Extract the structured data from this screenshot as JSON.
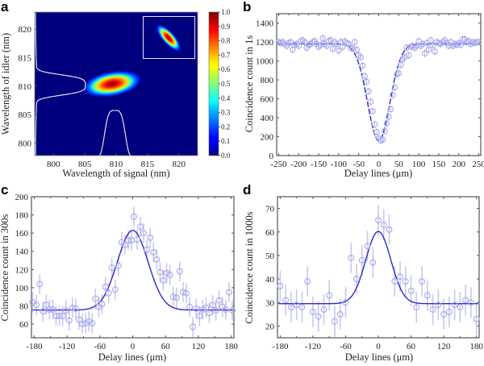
{
  "figure": {
    "panels": [
      "a",
      "b",
      "c",
      "d"
    ]
  },
  "chart_data": [
    {
      "id": "a",
      "type": "heatmap",
      "panel_label": "a",
      "title": "",
      "xlabel": "Wavelength of signal (nm)",
      "ylabel": "Wavelength of idler (nm)",
      "xlim": [
        797,
        823
      ],
      "ylim": [
        797.8,
        823
      ],
      "xticks": [
        800,
        805,
        810,
        815,
        820
      ],
      "yticks": [
        800,
        805,
        810,
        815,
        820
      ],
      "colormap": "jet",
      "colorbar": {
        "range": [
          0.0,
          1.0
        ],
        "ticks": [
          "0.0",
          "0.1",
          "0.2",
          "0.3",
          "0.4",
          "0.5",
          "0.6",
          "0.7",
          "0.8",
          "0.9",
          "1.0"
        ]
      },
      "main_peak": {
        "signal_nm": 809.8,
        "idler_nm": 810.2,
        "signal_fwhm_nm": 5.0,
        "idler_fwhm_nm": 1.9,
        "orientation": "slightly anti-correlated",
        "max": 1.0
      },
      "inset": {
        "description": "anti-correlated joint spectrum",
        "orientation": "anti-diagonal",
        "location": "top-right"
      },
      "marginals": [
        {
          "name": "idler-marginal",
          "axis": "y",
          "center_nm": 810.2,
          "width_nm": 3.6,
          "shape": "flat-top"
        },
        {
          "name": "signal-marginal",
          "axis": "x",
          "center_nm": 809.8,
          "width_nm": 3.3,
          "shape": "flat-top"
        }
      ],
      "background": "#00007f"
    },
    {
      "id": "b",
      "type": "scatter",
      "panel_label": "b",
      "xlabel": "Delay lines (μm)",
      "ylabel": "Coincidence count in 1s",
      "xlim": [
        -255,
        255
      ],
      "ylim": [
        0,
        1500
      ],
      "xticks": [
        -250,
        -200,
        -150,
        -100,
        -50,
        0,
        50,
        100,
        150,
        200,
        250
      ],
      "yticks": [
        0,
        200,
        400,
        600,
        800,
        1000,
        1200,
        1400
      ],
      "fit": {
        "type": "gaussian-dip",
        "baseline": 1180,
        "depth": 1020,
        "center": 0,
        "sigma": 28
      },
      "series": [
        {
          "name": "measured",
          "marker": "open-circle",
          "color": "#a8a8ec",
          "x": [
            -250,
            -245,
            -240,
            -235,
            -230,
            -225,
            -220,
            -215,
            -210,
            -205,
            -200,
            -195,
            -190,
            -185,
            -180,
            -175,
            -170,
            -165,
            -160,
            -155,
            -150,
            -145,
            -140,
            -135,
            -130,
            -125,
            -120,
            -115,
            -110,
            -105,
            -100,
            -95,
            -90,
            -85,
            -80,
            -75,
            -70,
            -65,
            -60,
            -55,
            -50,
            -45,
            -40,
            -35,
            -30,
            -25,
            -20,
            -15,
            -10,
            -5,
            0,
            5,
            10,
            15,
            20,
            25,
            30,
            35,
            40,
            45,
            50,
            55,
            60,
            65,
            70,
            75,
            80,
            85,
            90,
            95,
            100,
            105,
            110,
            115,
            120,
            125,
            130,
            135,
            140,
            145,
            150,
            155,
            160,
            165,
            170,
            175,
            180,
            185,
            190,
            195,
            200,
            205,
            210,
            215,
            220,
            225,
            230,
            235,
            240,
            245,
            250
          ],
          "y": [
            1200,
            1190,
            1200,
            1180,
            1160,
            1190,
            1200,
            1120,
            1170,
            1180,
            1160,
            1210,
            1220,
            1200,
            1140,
            1170,
            1180,
            1200,
            1210,
            1180,
            1150,
            1170,
            1240,
            1180,
            1160,
            1210,
            1220,
            1130,
            1200,
            1180,
            1110,
            1200,
            1150,
            1210,
            1190,
            1180,
            1140,
            1130,
            1200,
            1120,
            1060,
            1040,
            950,
            840,
            780,
            680,
            570,
            470,
            330,
            250,
            180,
            160,
            170,
            260,
            340,
            410,
            490,
            640,
            720,
            860,
            870,
            960,
            1020,
            1040,
            1140,
            1060,
            1150,
            1160,
            1140,
            1160,
            1210,
            1160,
            1180,
            1080,
            1190,
            1120,
            1220,
            1170,
            1100,
            1200,
            1190,
            1180,
            1200,
            1220,
            1190,
            1160,
            1200,
            1160,
            1180,
            1170,
            1190,
            1170,
            1230,
            1230,
            1200,
            1210,
            1180,
            1200,
            1190,
            1200,
            1200
          ]
        }
      ]
    },
    {
      "id": "c",
      "type": "scatter",
      "panel_label": "c",
      "xlabel": "Delay lines (μm)",
      "ylabel": "Coincidence count in 300s",
      "xlim": [
        -185,
        185
      ],
      "ylim": [
        45,
        200
      ],
      "xticks": [
        -180,
        -120,
        -60,
        0,
        60,
        120,
        180
      ],
      "yticks": [
        60,
        80,
        100,
        120,
        140,
        160,
        180,
        200
      ],
      "fit": {
        "type": "gaussian-peak",
        "baseline": 75.5,
        "amplitude": 87.5,
        "center": 0,
        "sigma": 28
      },
      "series": [
        {
          "name": "measured",
          "marker": "open-circle-with-errorbars",
          "color": "#a8a8ec",
          "x": [
            -183,
            -176,
            -170,
            -164,
            -158,
            -152,
            -146,
            -140,
            -134,
            -128,
            -122,
            -116,
            -110,
            -104,
            -98,
            -92,
            -86,
            -80,
            -74,
            -68,
            -62,
            -56,
            -50,
            -44,
            -38,
            -32,
            -26,
            -20,
            -14,
            -8,
            -2,
            2,
            8,
            14,
            20,
            26,
            32,
            38,
            44,
            50,
            56,
            62,
            68,
            74,
            80,
            86,
            92,
            98,
            104,
            110,
            116,
            122,
            128,
            134,
            140,
            146,
            152,
            158,
            164,
            170,
            176,
            182
          ],
          "y": [
            84,
            81,
            104,
            74,
            81,
            76,
            76,
            69,
            69,
            69,
            75,
            64,
            78,
            77,
            65,
            60,
            61,
            63,
            61,
            88,
            79,
            82,
            101,
            94,
            122,
            98,
            124,
            150,
            147,
            152,
            152,
            178,
            153,
            167,
            160,
            142,
            155,
            139,
            131,
            117,
            108,
            116,
            114,
            90,
            89,
            118,
            95,
            94,
            79,
            57,
            77,
            69,
            76,
            78,
            72,
            81,
            75,
            86,
            79,
            76,
            95,
            75
          ],
          "error": 11
        }
      ]
    },
    {
      "id": "d",
      "type": "scatter",
      "panel_label": "d",
      "xlabel": "Delay lines (μm)",
      "ylabel": "Coincidence count in 1000s",
      "xlim": [
        -185,
        185
      ],
      "ylim": [
        15,
        75
      ],
      "xticks": [
        -180,
        -120,
        -60,
        0,
        60,
        120,
        180
      ],
      "yticks": [
        20,
        30,
        40,
        50,
        60,
        70
      ],
      "fit": {
        "type": "gaussian-peak",
        "baseline": 29.5,
        "amplitude": 30.7,
        "center": 0,
        "sigma": 23
      },
      "series": [
        {
          "name": "measured",
          "marker": "open-circle-with-errorbars",
          "color": "#a8a8ec",
          "x": [
            -180,
            -170,
            -160,
            -150,
            -140,
            -130,
            -120,
            -110,
            -100,
            -90,
            -80,
            -70,
            -60,
            -50,
            -40,
            -30,
            -20,
            -10,
            0,
            10,
            20,
            30,
            40,
            50,
            60,
            70,
            80,
            90,
            100,
            110,
            120,
            130,
            140,
            150,
            160,
            170,
            180
          ],
          "y": [
            37,
            31,
            28,
            29,
            28,
            39,
            26,
            24,
            27,
            33,
            22,
            25,
            30,
            49,
            40,
            48,
            54,
            47,
            65,
            63,
            61,
            39,
            41,
            39,
            35,
            28,
            39,
            33,
            27,
            29,
            25,
            26,
            29,
            28,
            31,
            30,
            23
          ],
          "error": 6.5
        }
      ]
    }
  ]
}
